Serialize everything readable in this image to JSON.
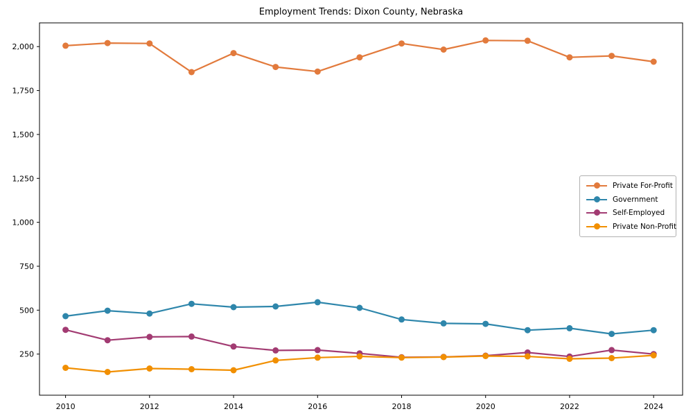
{
  "title": "Employment Trends: Dixon County, Nebraska",
  "chart_data": {
    "type": "line",
    "title": "Employment Trends: Dixon County, Nebraska",
    "xlabel": "",
    "ylabel": "",
    "grid": false,
    "legend_position": "center right",
    "xlim": [
      2009.38,
      2024.69
    ],
    "ylim": [
      16,
      2135
    ],
    "xticks": [
      2010,
      2012,
      2014,
      2016,
      2018,
      2020,
      2022,
      2024
    ],
    "xtick_labels": [
      "2010",
      "2012",
      "2014",
      "2016",
      "2018",
      "2020",
      "2022",
      "2024"
    ],
    "yticks": [
      250,
      500,
      750,
      1000,
      1250,
      1500,
      1750,
      2000
    ],
    "ytick_labels": [
      "250",
      "500",
      "750",
      "1,000",
      "1,250",
      "1,500",
      "1,750",
      "2,000"
    ],
    "x": [
      2010,
      2011,
      2012,
      2013,
      2014,
      2015,
      2016,
      2017,
      2018,
      2019,
      2020,
      2021,
      2022,
      2023,
      2024
    ],
    "series": [
      {
        "name": "Private For-Profit",
        "color": "#E27A3C",
        "values": [
          2005,
          2020,
          2018,
          1855,
          1963,
          1884,
          1858,
          1939,
          2018,
          1983,
          2035,
          2033,
          1939,
          1947,
          1914
        ]
      },
      {
        "name": "Government",
        "color": "#2E86AB",
        "values": [
          466,
          497,
          481,
          536,
          517,
          521,
          545,
          513,
          447,
          425,
          422,
          386,
          397,
          365,
          386
        ]
      },
      {
        "name": "Self-Employed",
        "color": "#A23B72",
        "values": [
          388,
          329,
          348,
          350,
          293,
          271,
          273,
          254,
          232,
          234,
          241,
          259,
          236,
          273,
          250
        ]
      },
      {
        "name": "Private Non-Profit",
        "color": "#F18F01",
        "values": [
          172,
          148,
          168,
          164,
          158,
          214,
          230,
          237,
          230,
          233,
          239,
          237,
          223,
          227,
          243
        ]
      }
    ],
    "axis_color": "#000000",
    "tick_font_px": 11,
    "title_font_px": 13
  }
}
